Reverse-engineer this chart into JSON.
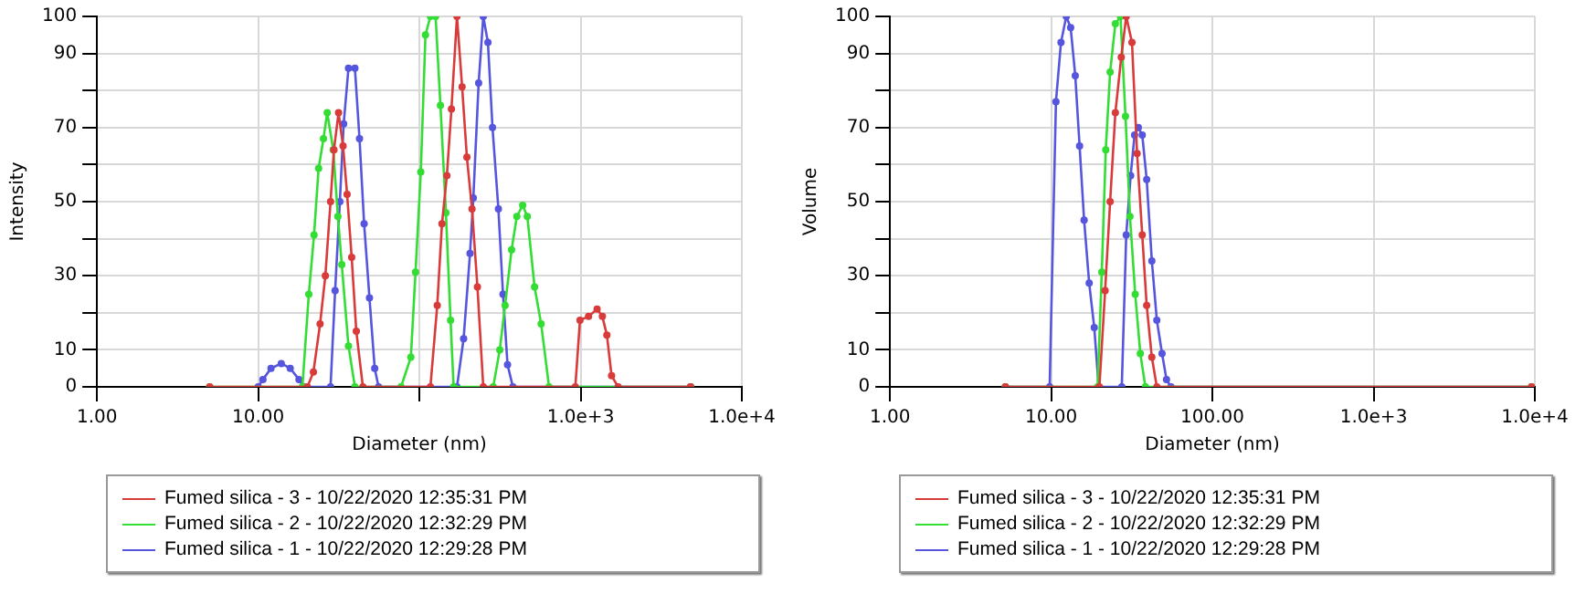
{
  "chart_data": [
    {
      "type": "line",
      "xlabel": "Diameter (nm)",
      "ylabel": "Intensity",
      "log": "x",
      "grid": true,
      "legend": "bottom",
      "marker": "circle",
      "line_style": "solid",
      "xlim": [
        1,
        10000
      ],
      "ylim": [
        0,
        100
      ],
      "xticks": [
        {
          "value": 1,
          "label": "1.00"
        },
        {
          "value": 10,
          "label": "10.00"
        },
        {
          "value": 100,
          "label": null
        },
        {
          "value": 1000,
          "label": "1.0e+3"
        },
        {
          "value": 10000,
          "label": "1.0e+4"
        }
      ],
      "yticks": [
        0,
        10,
        {
          "value": 20,
          "label": null
        },
        30,
        {
          "value": 40,
          "label": null
        },
        50,
        {
          "value": 60,
          "label": null
        },
        70,
        {
          "value": 80,
          "label": null
        },
        90,
        100
      ],
      "series": [
        {
          "name": "Fumed silica - 3 - 10/22/2020 12:35:31 PM",
          "color": "#d93a3a",
          "x": [
            5.0,
            20.2,
            22.0,
            24.2,
            26.1,
            28.1,
            29.5,
            31.5,
            33.6,
            35.6,
            38.0,
            40.6,
            44.6,
            117,
            129,
            138,
            148,
            158,
            171,
            184,
            197,
            212,
            229,
            249,
            927,
            991,
            1120,
            1265,
            1364,
            1455,
            1556,
            1709,
            4808
          ],
          "values": [
            0,
            0,
            4,
            17,
            30,
            50,
            64,
            74,
            65,
            52,
            35,
            15,
            0,
            0,
            22,
            44,
            57,
            75,
            100,
            81,
            62,
            48,
            27,
            0,
            0,
            18,
            19,
            21,
            19,
            14,
            3,
            0,
            0
          ]
        },
        {
          "name": "Fumed silica - 2 - 10/22/2020 12:32:29 PM",
          "color": "#33dd33",
          "x": [
            5.0,
            18.8,
            20.6,
            22.2,
            23.7,
            25.4,
            26.8,
            29.2,
            31.2,
            33.0,
            36.3,
            39.8,
            76.9,
            88.5,
            94.6,
            102,
            109,
            117,
            126,
            135,
            146,
            156,
            163,
            287,
            315,
            340,
            373,
            402,
            437,
            467,
            518,
            569,
            637,
            4808
          ],
          "values": [
            0,
            0,
            25,
            41,
            59,
            67,
            74,
            64,
            46,
            33,
            11,
            0,
            0,
            8,
            31,
            58,
            95,
            100,
            100,
            76,
            47,
            18,
            0,
            0,
            10,
            22,
            37,
            46,
            49,
            46,
            27,
            17,
            0,
            0
          ]
        },
        {
          "name": "Fumed silica - 1 - 10/22/2020 12:29:28 PM",
          "color": "#5555dd",
          "x": [
            10.0,
            10.7,
            12.0,
            13.9,
            15.8,
            17.9,
            19.1,
            28.1,
            30.0,
            32.1,
            33.9,
            36.3,
            39.8,
            42.5,
            45.4,
            49.0,
            52.8,
            55.8,
            171,
            188,
            206,
            216,
            233,
            249,
            266,
            284,
            309,
            330,
            352,
            380,
            4808
          ],
          "values": [
            0,
            2,
            5,
            6.3,
            5,
            2,
            0,
            0,
            26,
            50,
            71,
            86,
            86,
            67,
            44,
            24,
            5,
            0,
            0,
            13,
            36,
            51,
            82,
            100,
            93,
            70,
            48,
            25,
            6,
            0,
            0
          ]
        }
      ]
    },
    {
      "type": "line",
      "xlabel": "Diameter (nm)",
      "ylabel": "Volume",
      "log": "x",
      "grid": true,
      "legend": "bottom",
      "marker": "circle",
      "line_style": "solid",
      "xlim": [
        1,
        10000
      ],
      "ylim": [
        0,
        100
      ],
      "xticks": [
        {
          "value": 1,
          "label": "1.00"
        },
        {
          "value": 10,
          "label": "10.00"
        },
        {
          "value": 100,
          "label": "100.00"
        },
        {
          "value": 1000,
          "label": "1.0e+3"
        },
        {
          "value": 10000,
          "label": "1.0e+4"
        }
      ],
      "yticks": [
        0,
        10,
        {
          "value": 20,
          "label": null
        },
        30,
        {
          "value": 40,
          "label": null
        },
        50,
        {
          "value": 60,
          "label": null
        },
        70,
        {
          "value": 80,
          "label": null
        },
        90,
        100
      ],
      "series": [
        {
          "name": "Fumed silica - 3 - 10/22/2020 12:35:31 PM",
          "color": "#d93a3a",
          "x": [
            5.2,
            19.9,
            21.6,
            23.2,
            25.0,
            27.2,
            29.2,
            31.7,
            34.1,
            36.7,
            39.1,
            42.1,
            45.2,
            9550
          ],
          "values": [
            0,
            0,
            26,
            50,
            74,
            89,
            100,
            93,
            63,
            41,
            22,
            8,
            0,
            0
          ]
        },
        {
          "name": "Fumed silica - 2 - 10/22/2020 12:32:29 PM",
          "color": "#33dd33",
          "x": [
            5.2,
            19.4,
            20.6,
            21.8,
            23.2,
            25.0,
            26.9,
            28.9,
            30.8,
            33.2,
            35.7,
            38.4,
            9550
          ],
          "values": [
            0,
            0,
            31,
            64,
            85,
            98,
            100,
            73,
            46,
            25,
            9,
            0,
            0
          ]
        },
        {
          "name": "Fumed silica - 1 - 10/22/2020 12:29:28 PM",
          "color": "#5555dd",
          "x": [
            5.2,
            9.78,
            10.7,
            11.5,
            12.4,
            13.2,
            14.1,
            15.0,
            16.0,
            17.2,
            18.5,
            19.7,
            27.4,
            29.2,
            31.1,
            32.9,
            34.7,
            36.7,
            39.1,
            42.1,
            45.2,
            48.7,
            51.9,
            55.3,
            9550
          ],
          "values": [
            0,
            0,
            77,
            93,
            100,
            97,
            84,
            65,
            45,
            28,
            16,
            0,
            0,
            41,
            57,
            68,
            70,
            68,
            56,
            34,
            18,
            9,
            2,
            0,
            0
          ]
        }
      ]
    }
  ]
}
